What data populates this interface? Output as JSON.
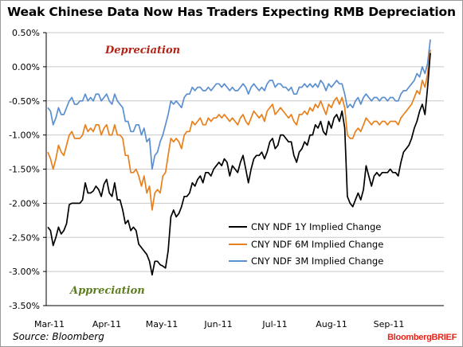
{
  "title": "Weak Chinese Data Now Has Traders Expecting RMB Depreciation",
  "source": "Source: Bloomberg",
  "brand": "BloombergBRIEF",
  "annotations": {
    "top": "Depreciation",
    "bottom": "Appreciation"
  },
  "colors": {
    "depreciation": "#b02418",
    "appreciation": "#5e7d1f",
    "series_1y": "#000000",
    "series_6m": "#e8801c",
    "series_3m": "#5a8fd0",
    "grid": "#c8c8c8"
  },
  "chart_data": {
    "type": "line",
    "title": "Weak Chinese Data Now Has Traders Expecting RMB Depreciation",
    "xlabel": "",
    "ylabel": "",
    "x_tick_labels": [
      "Mar-11",
      "Apr-11",
      "May-11",
      "Jun-11",
      "Jul-11",
      "Aug-11",
      "Sep-11"
    ],
    "y_tick_labels": [
      "0.50%",
      "0.00%",
      "-0.50%",
      "-1.00%",
      "-1.50%",
      "-2.00%",
      "-2.50%",
      "-3.00%",
      "-3.50%"
    ],
    "ylim": [
      -3.5,
      0.5
    ],
    "xlim": [
      0,
      144
    ],
    "grid": true,
    "legend_position": "lower-right",
    "series": [
      {
        "name": "CNY NDF 1Y Implied Change",
        "values": [
          -2.35,
          -2.4,
          -2.62,
          -2.5,
          -2.35,
          -2.45,
          -2.4,
          -2.3,
          -2.02,
          -2.0,
          -2.0,
          -2.0,
          -2.0,
          -1.95,
          -1.7,
          -1.85,
          -1.85,
          -1.82,
          -1.75,
          -1.8,
          -1.9,
          -1.72,
          -1.65,
          -1.85,
          -1.9,
          -1.7,
          -1.95,
          -1.95,
          -2.1,
          -2.3,
          -2.25,
          -2.4,
          -2.35,
          -2.4,
          -2.6,
          -2.65,
          -2.7,
          -2.75,
          -2.85,
          -3.05,
          -2.85,
          -2.85,
          -2.9,
          -2.92,
          -2.95,
          -2.7,
          -2.2,
          -2.1,
          -2.2,
          -2.15,
          -2.05,
          -1.9,
          -1.9,
          -1.85,
          -1.7,
          -1.75,
          -1.65,
          -1.6,
          -1.7,
          -1.55,
          -1.55,
          -1.6,
          -1.5,
          -1.45,
          -1.4,
          -1.45,
          -1.35,
          -1.4,
          -1.6,
          -1.45,
          -1.5,
          -1.55,
          -1.4,
          -1.3,
          -1.5,
          -1.7,
          -1.5,
          -1.35,
          -1.3,
          -1.3,
          -1.25,
          -1.35,
          -1.25,
          -1.1,
          -1.05,
          -1.2,
          -1.15,
          -1.0,
          -1.0,
          -1.05,
          -1.1,
          -1.1,
          -1.3,
          -1.4,
          -1.25,
          -1.2,
          -1.1,
          -1.15,
          -1.0,
          -1.0,
          -0.85,
          -0.9,
          -0.8,
          -0.95,
          -1.0,
          -0.8,
          -0.9,
          -0.75,
          -0.7,
          -0.8,
          -0.65,
          -0.9,
          -1.9,
          -2.0,
          -2.05,
          -1.95,
          -1.85,
          -1.95,
          -1.8,
          -1.45,
          -1.6,
          -1.75,
          -1.6,
          -1.55,
          -1.6,
          -1.55,
          -1.55,
          -1.55,
          -1.5,
          -1.55,
          -1.55,
          -1.6,
          -1.4,
          -1.25,
          -1.2,
          -1.15,
          -1.05,
          -0.9,
          -0.8,
          -0.65,
          -0.55,
          -0.7,
          -0.3,
          0.2
        ]
      },
      {
        "name": "CNY NDF 6M Implied Change",
        "values": [
          -1.25,
          -1.35,
          -1.5,
          -1.35,
          -1.15,
          -1.25,
          -1.3,
          -1.15,
          -1.0,
          -0.95,
          -1.05,
          -1.05,
          -1.05,
          -1.0,
          -0.85,
          -0.95,
          -0.9,
          -0.95,
          -0.85,
          -0.85,
          -1.0,
          -0.9,
          -0.85,
          -1.0,
          -1.0,
          -0.85,
          -1.0,
          -1.0,
          -1.05,
          -1.3,
          -1.3,
          -1.55,
          -1.55,
          -1.5,
          -1.6,
          -1.75,
          -1.6,
          -1.85,
          -1.75,
          -2.1,
          -1.85,
          -1.8,
          -1.85,
          -1.6,
          -1.55,
          -1.3,
          -1.05,
          -1.1,
          -1.05,
          -1.1,
          -1.2,
          -1.0,
          -0.95,
          -0.95,
          -0.8,
          -0.85,
          -0.8,
          -0.75,
          -0.85,
          -0.85,
          -0.75,
          -0.8,
          -0.75,
          -0.75,
          -0.7,
          -0.75,
          -0.7,
          -0.75,
          -0.8,
          -0.75,
          -0.8,
          -0.85,
          -0.75,
          -0.7,
          -0.8,
          -0.85,
          -0.75,
          -0.65,
          -0.7,
          -0.75,
          -0.7,
          -0.8,
          -0.65,
          -0.6,
          -0.55,
          -0.7,
          -0.65,
          -0.6,
          -0.65,
          -0.7,
          -0.75,
          -0.7,
          -0.8,
          -0.85,
          -0.7,
          -0.7,
          -0.65,
          -0.7,
          -0.6,
          -0.65,
          -0.55,
          -0.6,
          -0.5,
          -0.6,
          -0.7,
          -0.55,
          -0.6,
          -0.5,
          -0.45,
          -0.55,
          -0.45,
          -0.6,
          -1.0,
          -1.05,
          -1.05,
          -0.95,
          -0.9,
          -0.95,
          -0.85,
          -0.75,
          -0.8,
          -0.85,
          -0.8,
          -0.8,
          -0.85,
          -0.8,
          -0.8,
          -0.85,
          -0.8,
          -0.8,
          -0.8,
          -0.85,
          -0.75,
          -0.7,
          -0.65,
          -0.6,
          -0.55,
          -0.45,
          -0.35,
          -0.4,
          -0.2,
          -0.3,
          -0.1,
          0.25
        ]
      },
      {
        "name": "CNY NDF 3M Implied Change",
        "values": [
          -0.6,
          -0.65,
          -0.85,
          -0.75,
          -0.6,
          -0.7,
          -0.7,
          -0.6,
          -0.5,
          -0.45,
          -0.55,
          -0.55,
          -0.5,
          -0.5,
          -0.4,
          -0.5,
          -0.45,
          -0.5,
          -0.4,
          -0.4,
          -0.5,
          -0.45,
          -0.4,
          -0.5,
          -0.55,
          -0.4,
          -0.5,
          -0.55,
          -0.6,
          -0.8,
          -0.8,
          -0.95,
          -0.95,
          -0.85,
          -0.85,
          -1.0,
          -0.9,
          -1.1,
          -1.05,
          -1.5,
          -1.3,
          -1.25,
          -1.1,
          -1.0,
          -0.85,
          -0.7,
          -0.5,
          -0.55,
          -0.5,
          -0.55,
          -0.6,
          -0.45,
          -0.4,
          -0.4,
          -0.3,
          -0.35,
          -0.3,
          -0.3,
          -0.35,
          -0.35,
          -0.3,
          -0.35,
          -0.3,
          -0.25,
          -0.25,
          -0.3,
          -0.25,
          -0.3,
          -0.35,
          -0.3,
          -0.35,
          -0.35,
          -0.3,
          -0.25,
          -0.3,
          -0.4,
          -0.3,
          -0.25,
          -0.3,
          -0.35,
          -0.3,
          -0.35,
          -0.25,
          -0.2,
          -0.2,
          -0.3,
          -0.25,
          -0.25,
          -0.3,
          -0.3,
          -0.35,
          -0.3,
          -0.4,
          -0.4,
          -0.3,
          -0.3,
          -0.25,
          -0.3,
          -0.25,
          -0.3,
          -0.25,
          -0.3,
          -0.2,
          -0.25,
          -0.35,
          -0.25,
          -0.3,
          -0.25,
          -0.2,
          -0.25,
          -0.25,
          -0.4,
          -0.6,
          -0.55,
          -0.6,
          -0.5,
          -0.45,
          -0.55,
          -0.45,
          -0.4,
          -0.45,
          -0.5,
          -0.45,
          -0.45,
          -0.5,
          -0.45,
          -0.45,
          -0.5,
          -0.45,
          -0.45,
          -0.5,
          -0.5,
          -0.4,
          -0.35,
          -0.35,
          -0.3,
          -0.25,
          -0.2,
          -0.1,
          -0.15,
          0.0,
          -0.1,
          0.05,
          0.4
        ]
      }
    ]
  }
}
